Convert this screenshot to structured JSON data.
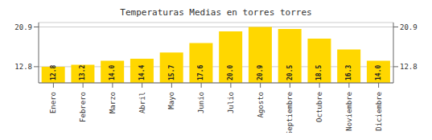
{
  "chart_data": {
    "type": "bar",
    "title": "Temperaturas Medias en torres torres",
    "categories": [
      "Enero",
      "Febrero",
      "Marzo",
      "Abril",
      "Mayo",
      "Junio",
      "Julio",
      "Agosto",
      "Septiembre",
      "Octubre",
      "Noviembre",
      "Diciembre"
    ],
    "values": [
      12.8,
      13.2,
      14.0,
      14.4,
      15.7,
      17.6,
      20.0,
      20.9,
      20.5,
      18.5,
      16.3,
      14.0
    ],
    "value_labels": [
      "12.8",
      "13.2",
      "14.0",
      "14.4",
      "15.7",
      "17.6",
      "20.0",
      "20.9",
      "20.5",
      "18.5",
      "16.3",
      "14.0"
    ],
    "data_labels": true,
    "color": "#FFD700",
    "ylim": [
      9.5,
      21.8
    ],
    "yticks": [
      12.8,
      20.9
    ],
    "y2lim": [
      9.5,
      21.8
    ],
    "y2ticks": [
      12.8,
      20.9
    ],
    "grid": true
  }
}
